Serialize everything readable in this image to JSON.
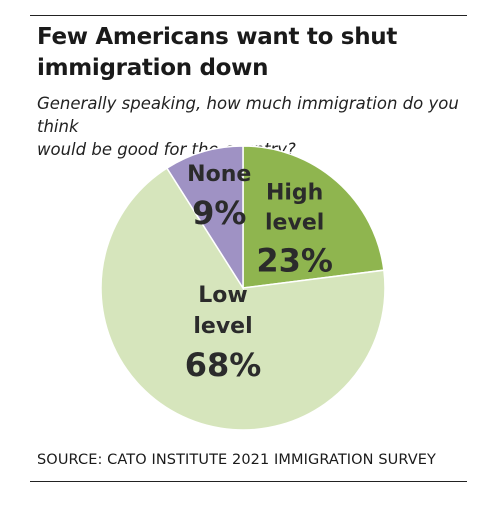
{
  "header": {
    "title_line1": "Few Americans want to shut",
    "title_line2": "immigration down",
    "subtitle_line1": "Generally speaking, how much immigration do you think",
    "subtitle_line2": "would be good for the country?"
  },
  "chart_data": {
    "type": "pie",
    "title": "Few Americans want to shut immigration down",
    "subtitle": "Generally speaking, how much immigration do you think would be good for the country?",
    "slices": [
      {
        "label_lines": [
          "High",
          "level"
        ],
        "value": 23,
        "value_label": "23%",
        "color": "#8fb54f"
      },
      {
        "label_lines": [
          "Low",
          "level"
        ],
        "value": 68,
        "value_label": "68%",
        "color": "#d6e5bc"
      },
      {
        "label_lines": [
          "None"
        ],
        "value": 9,
        "value_label": "9%",
        "color": "#9f92c4"
      }
    ],
    "start_angle": "12 o'clock",
    "direction": "clockwise"
  },
  "footer": {
    "source": "SOURCE: CATO INSTITUTE 2021 IMMIGRATION SURVEY"
  }
}
